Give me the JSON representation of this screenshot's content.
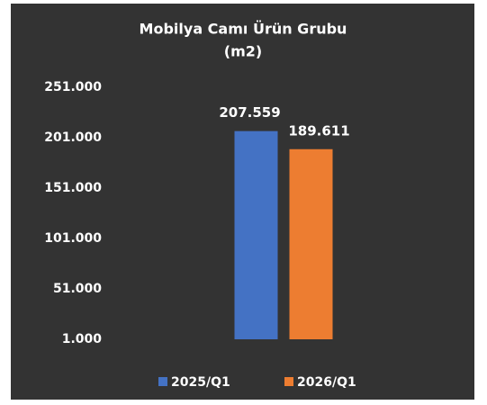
{
  "chart_data": {
    "type": "bar",
    "title": [
      "Mobilya Camı Ürün Grubu",
      "(m2)"
    ],
    "categories": [
      null
    ],
    "series": [
      {
        "name": "2025/Q1",
        "color": "#4472c4",
        "values": [
          207559
        ],
        "value_labels": [
          "207.559"
        ]
      },
      {
        "name": "2026/Q1",
        "color": "#ed7d31",
        "values": [
          189611
        ],
        "value_labels": [
          "189.611"
        ]
      }
    ],
    "ylim": [
      1000,
      251000
    ],
    "yticks": [
      {
        "value": 1000,
        "label": "1.000"
      },
      {
        "value": 51000,
        "label": "51.000"
      },
      {
        "value": 101000,
        "label": "101.000"
      },
      {
        "value": 151000,
        "label": "151.000"
      },
      {
        "value": 201000,
        "label": "201.000"
      },
      {
        "value": 251000,
        "label": "251.000"
      }
    ],
    "grid": false,
    "legend": "bottom"
  }
}
